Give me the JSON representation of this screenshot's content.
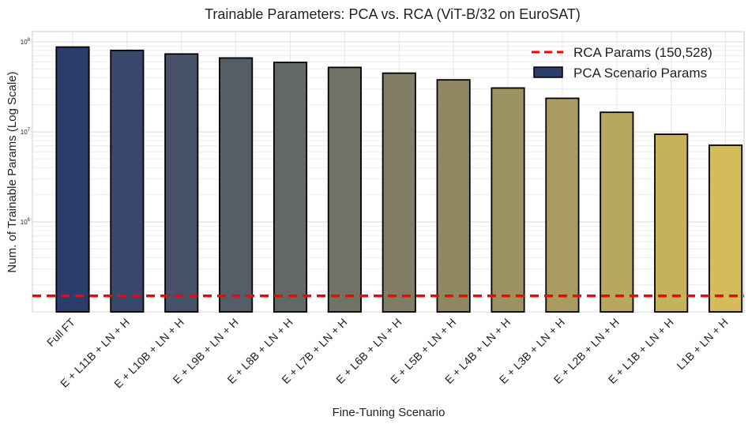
{
  "chart_data": {
    "type": "bar",
    "title": "Trainable Parameters: PCA vs. RCA (ViT-B/32 on EuroSAT)",
    "xlabel": "Fine-Tuning Scenario",
    "ylabel": "Num. of Trainable Params (Log Scale)",
    "yscale": "log",
    "ylim": [
      100000,
      130000000
    ],
    "yticks": [
      1000000,
      10000000,
      100000000
    ],
    "ytick_labels": [
      {
        "base": "10",
        "exp": "6"
      },
      {
        "base": "10",
        "exp": "7"
      },
      {
        "base": "10",
        "exp": "8"
      }
    ],
    "grid": true,
    "legend_position": "top-right",
    "categories": [
      "Full FT",
      "E + L11B + LN + H",
      "E + L10B + LN + H",
      "E + L9B + LN + H",
      "E + L8B + LN + H",
      "E + L7B + LN + H",
      "E + L6B + LN + H",
      "E + L5B + LN + H",
      "E + L4B + LN + H",
      "E + L3B + LN + H",
      "E + L2B + LN + H",
      "E + L1B + LN + H",
      "L1B + LN + H"
    ],
    "series": [
      {
        "name": "PCA Scenario Params",
        "values": [
          87500000,
          80400000,
          73300000,
          66200000,
          59100000,
          52000000,
          44900000,
          37800000,
          30700000,
          23600000,
          16500000,
          9400000,
          7100000
        ]
      }
    ],
    "reference_lines": [
      {
        "name": "RCA Params (150,528)",
        "value": 150528,
        "color": "#ff0000",
        "style": "dashed"
      }
    ],
    "colors": {
      "bar_start": "#2b3d6b",
      "bar_end": "#d4bc5c",
      "bar_edge": "#000000",
      "rca_line": "#ff0000",
      "grid": "#dddddd",
      "legend_patch": "#2b3d6b"
    }
  }
}
